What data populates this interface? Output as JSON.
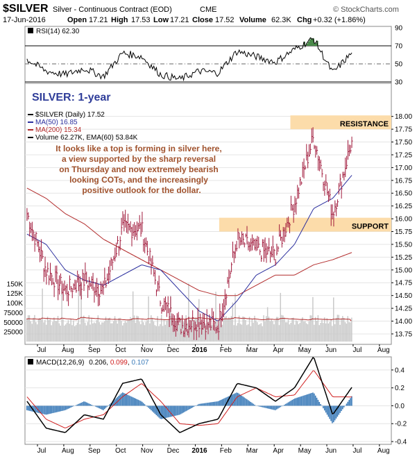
{
  "header": {
    "symbol": "$SILVER",
    "description": "Silver - Continuous Contract (EOD)",
    "exchange": "CME",
    "brand": "© StockCharts.com",
    "date": "17-Jun-2016",
    "open_label": "Open",
    "open": "17.21",
    "high_label": "High",
    "high": "17.53",
    "low_label": "Low",
    "low": "17.21",
    "close_label": "Close",
    "close": "17.52",
    "volume_label": "Volume",
    "volume": "62.3K",
    "chg_label": "Chg",
    "chg": "+0.32 (+1.86%)"
  },
  "rsi_panel": {
    "legend": "RSI(14) 62.30",
    "yticks": [
      90,
      70,
      50,
      30
    ]
  },
  "price_panel": {
    "big_title": "SILVER: 1-year",
    "legend": [
      {
        "text": "$SILVER (Daily) 17.52",
        "color": "#000000"
      },
      {
        "text": "MA(50) 16.85",
        "color": "#2b2f9e"
      },
      {
        "text": "MA(200) 15.34",
        "color": "#b22a2a"
      },
      {
        "text": "Volume 62.27K, EMA(60) 53.84K",
        "color": "#000000"
      }
    ],
    "annotation": [
      "It looks like a top is forming in silver here,",
      "a view supported by the sharp reversal",
      "on Thursday and now extremely bearish",
      "looking COTs, and the increasingly",
      "positive outlook for the dollar."
    ],
    "resistance_label": "RESISTANCE",
    "support_label": "SUPPORT",
    "yticks": [
      "18.00",
      "17.75",
      "17.50",
      "17.25",
      "17.00",
      "16.75",
      "16.50",
      "16.25",
      "16.00",
      "15.75",
      "15.50",
      "15.25",
      "15.00",
      "14.75",
      "14.50",
      "14.25",
      "14.00",
      "13.75"
    ],
    "vol_ticks": [
      "150K",
      "125K",
      "100K",
      "75000",
      "50000",
      "25000"
    ]
  },
  "macd_panel": {
    "legend_name": "MACD(12,26,9)",
    "legend_macd": "0.206",
    "legend_signal": "0.099",
    "legend_hist": "0.107",
    "yticks": [
      "0.4",
      "0.2",
      "0.0",
      "-0.2",
      "-0.4"
    ]
  },
  "xaxis": {
    "months": [
      "Jul",
      "Aug",
      "Sep",
      "Oct",
      "Nov",
      "Dec",
      "2016",
      "Feb",
      "Mar",
      "Apr",
      "May",
      "Jun",
      "Jul",
      "Aug"
    ]
  },
  "colors": {
    "price_bar": "#a0183a",
    "ma50": "#2b2f9e",
    "ma200": "#b22a2a",
    "zone": "#fcdcaa",
    "volume": "#c8c8c8",
    "macd": "#000000",
    "signal": "#d02020",
    "hist": "#3a7ab8",
    "rsi_over": "#4a8a4a",
    "rsi_under": "#b05050"
  },
  "chart_data": {
    "type": "line",
    "title": "$SILVER Silver - Continuous Contract (EOD)",
    "x": [
      "2015-06-22",
      "2015-07-13",
      "2015-08-03",
      "2015-08-24",
      "2015-09-14",
      "2015-10-05",
      "2015-10-26",
      "2015-11-16",
      "2015-12-07",
      "2015-12-28",
      "2016-01-18",
      "2016-02-08",
      "2016-02-29",
      "2016-03-21",
      "2016-04-11",
      "2016-05-02",
      "2016-05-23",
      "2016-06-17"
    ],
    "series": [
      {
        "name": "$SILVER (Daily)",
        "values": [
          16.1,
          15.0,
          14.6,
          14.8,
          14.6,
          15.8,
          15.8,
          14.4,
          13.9,
          14.0,
          13.9,
          15.6,
          15.4,
          15.3,
          16.3,
          17.6,
          16.1,
          17.52
        ]
      },
      {
        "name": "MA(50)",
        "values": [
          15.7,
          15.5,
          15.0,
          14.8,
          14.7,
          14.9,
          15.1,
          15.0,
          14.6,
          14.2,
          14.0,
          14.4,
          14.9,
          15.1,
          15.5,
          16.2,
          16.4,
          16.85
        ]
      },
      {
        "name": "MA(200)",
        "values": [
          16.6,
          16.4,
          16.1,
          15.9,
          15.6,
          15.4,
          15.2,
          15.0,
          14.8,
          14.6,
          14.5,
          14.5,
          14.7,
          14.9,
          14.9,
          15.1,
          15.2,
          15.34
        ]
      }
    ],
    "ylim": [
      13.6,
      18.05
    ],
    "annotations": {
      "resistance": [
        17.75,
        18.02
      ],
      "support": [
        15.75,
        16.02
      ]
    },
    "rsi": {
      "last": 62.3,
      "ylim": [
        30,
        90
      ]
    },
    "macd": {
      "last_macd": 0.206,
      "last_signal": 0.099,
      "last_hist": 0.107,
      "ylim": [
        -0.4,
        0.5
      ]
    },
    "volume": {
      "last": 62270,
      "ema60": 53840,
      "ylim": [
        0,
        175000
      ]
    }
  }
}
